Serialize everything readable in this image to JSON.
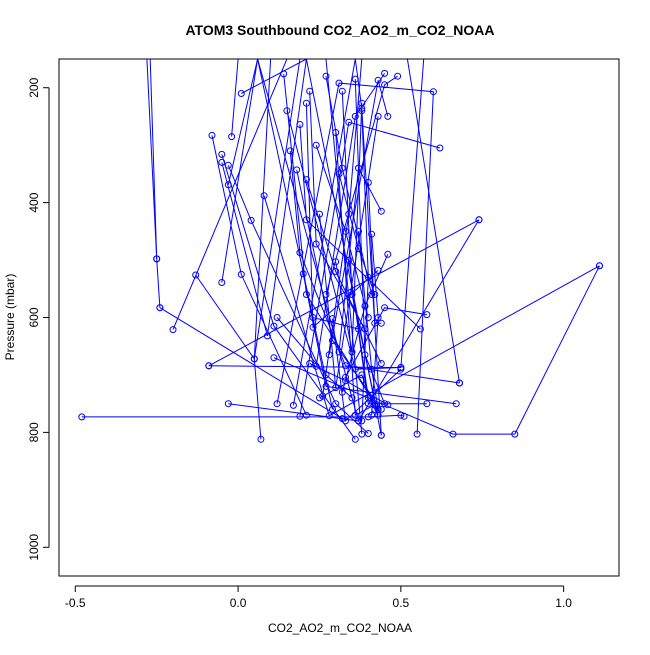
{
  "chart_data": {
    "type": "scatter",
    "title": "ATOM3 Southbound CO2_AO2_m_CO2_NOAA",
    "xlabel": "CO2_AO2_m_CO2_NOAA",
    "ylabel": "Pressure (mbar)",
    "xlim": [
      -0.55,
      1.17
    ],
    "ylim": [
      1050,
      150
    ],
    "y_reversed": true,
    "grid": false,
    "x_ticks": [
      -0.5,
      0.0,
      0.5,
      1.0
    ],
    "x_tick_labels": [
      "-0.5",
      "0.0",
      "0.5",
      "1.0"
    ],
    "y_ticks": [
      200,
      400,
      600,
      800,
      1000
    ],
    "y_tick_labels": [
      "200",
      "400",
      "600",
      "800",
      "1000"
    ],
    "series_color": "#0000ff",
    "series": [
      {
        "points": [
          [
            -0.28,
            150
          ],
          [
            -0.25,
            498
          ],
          [
            -0.24,
            583
          ]
        ]
      },
      {
        "points": [
          [
            -0.27,
            150
          ],
          [
            -0.25,
            498
          ]
        ]
      },
      {
        "points": [
          [
            -0.48,
            773
          ],
          [
            0.4,
            773
          ],
          [
            0.5,
            770
          ],
          [
            0.51,
            772
          ]
        ]
      },
      {
        "points": [
          [
            -0.24,
            583
          ],
          [
            0.32,
            776
          ]
        ]
      },
      {
        "points": [
          [
            -0.2,
            621
          ],
          [
            0.15,
            150
          ],
          [
            0.52,
            150
          ],
          [
            0.68,
            714
          ]
        ]
      },
      {
        "points": [
          [
            -0.13,
            526
          ],
          [
            0.05,
            672
          ],
          [
            0.1,
            150
          ]
        ]
      },
      {
        "points": [
          [
            -0.08,
            283
          ],
          [
            0.01,
            525
          ],
          [
            0.21,
            770
          ]
        ]
      },
      {
        "points": [
          [
            -0.05,
            316
          ],
          [
            0.11,
            615
          ],
          [
            0.36,
            812
          ]
        ]
      },
      {
        "points": [
          [
            -0.05,
            330
          ],
          [
            0.09,
            632
          ],
          [
            0.21,
            150
          ]
        ]
      },
      {
        "points": [
          [
            -0.03,
            335
          ],
          [
            0.04,
            431
          ],
          [
            0.3,
            750
          ],
          [
            0.4,
            802
          ]
        ]
      },
      {
        "points": [
          [
            -0.02,
            285
          ],
          [
            0.0,
            150
          ],
          [
            0.27,
            150
          ],
          [
            0.38,
            803
          ]
        ]
      },
      {
        "points": [
          [
            0.01,
            210
          ],
          [
            0.21,
            150
          ],
          [
            0.44,
            805
          ]
        ]
      },
      {
        "points": [
          [
            -0.03,
            369
          ],
          [
            0.06,
            150
          ],
          [
            0.37,
            780
          ]
        ]
      },
      {
        "points": [
          [
            -0.05,
            539
          ],
          [
            0.06,
            150
          ],
          [
            0.29,
            760
          ]
        ]
      },
      {
        "points": [
          [
            -0.09,
            684
          ],
          [
            0.5,
            687
          ],
          [
            0.57,
            150
          ]
        ]
      },
      {
        "points": [
          [
            -0.03,
            750
          ],
          [
            0.37,
            780
          ],
          [
            0.74,
            430
          ]
        ]
      },
      {
        "points": [
          [
            -0.09,
            684
          ],
          [
            0.74,
            430
          ]
        ]
      },
      {
        "points": [
          [
            0.07,
            812
          ],
          [
            0.05,
            672
          ],
          [
            0.19,
            150
          ]
        ]
      },
      {
        "points": [
          [
            0.08,
            388
          ],
          [
            0.28,
            771
          ],
          [
            1.11,
            510
          ]
        ]
      },
      {
        "points": [
          [
            0.11,
            670
          ],
          [
            0.66,
            803
          ],
          [
            0.85,
            803
          ],
          [
            1.11,
            510
          ]
        ]
      },
      {
        "points": [
          [
            0.12,
            750
          ],
          [
            0.31,
            192
          ],
          [
            0.6,
            207
          ],
          [
            0.55,
            803
          ]
        ]
      },
      {
        "points": [
          [
            0.15,
            240
          ],
          [
            0.36,
            690
          ],
          [
            0.5,
            687
          ]
        ]
      },
      {
        "points": [
          [
            0.17,
            753
          ],
          [
            0.36,
            150
          ],
          [
            0.38,
            236
          ],
          [
            0.44,
            805
          ]
        ]
      },
      {
        "points": [
          [
            0.16,
            310
          ],
          [
            0.19,
            487
          ],
          [
            0.33,
            684
          ],
          [
            0.68,
            714
          ]
        ]
      },
      {
        "points": [
          [
            0.14,
            176
          ],
          [
            0.21,
            560
          ],
          [
            0.43,
            760
          ]
        ]
      },
      {
        "points": [
          [
            0.18,
            343
          ],
          [
            0.29,
            640
          ],
          [
            0.44,
            760
          ]
        ]
      },
      {
        "points": [
          [
            0.19,
            264
          ],
          [
            0.21,
            430
          ],
          [
            0.56,
            620
          ]
        ]
      },
      {
        "points": [
          [
            0.19,
            772
          ],
          [
            0.34,
            260
          ],
          [
            0.62,
            305
          ]
        ]
      },
      {
        "points": [
          [
            0.2,
            524
          ],
          [
            0.27,
            720
          ],
          [
            0.67,
            750
          ]
        ]
      },
      {
        "points": [
          [
            0.21,
            227
          ],
          [
            0.23,
            617
          ],
          [
            0.43,
            518
          ]
        ]
      },
      {
        "points": [
          [
            0.22,
            206
          ],
          [
            0.24,
            472
          ],
          [
            0.39,
            620
          ]
        ]
      },
      {
        "points": [
          [
            0.25,
            420
          ],
          [
            0.3,
            722
          ],
          [
            0.43,
            250
          ]
        ]
      },
      {
        "points": [
          [
            0.24,
            685
          ],
          [
            0.36,
            250
          ],
          [
            0.45,
            175
          ]
        ]
      },
      {
        "points": [
          [
            0.27,
            560
          ],
          [
            0.45,
            195
          ],
          [
            0.49,
            180
          ]
        ]
      },
      {
        "points": [
          [
            0.28,
            665
          ],
          [
            0.43,
            187
          ],
          [
            0.46,
            250
          ]
        ]
      },
      {
        "points": [
          [
            0.26,
            737
          ],
          [
            0.34,
            420
          ],
          [
            0.38,
            150
          ]
        ]
      },
      {
        "points": [
          [
            0.3,
            503
          ],
          [
            0.35,
            660
          ],
          [
            0.38,
            227
          ]
        ]
      },
      {
        "points": [
          [
            0.31,
            660
          ],
          [
            0.37,
            340
          ],
          [
            0.44,
            415
          ]
        ]
      },
      {
        "points": [
          [
            0.32,
            730
          ],
          [
            0.39,
            580
          ],
          [
            0.46,
            490
          ]
        ]
      },
      {
        "points": [
          [
            0.33,
            704
          ],
          [
            0.45,
            583
          ],
          [
            0.58,
            595
          ]
        ]
      },
      {
        "points": [
          [
            0.34,
            500
          ],
          [
            0.4,
            750
          ],
          [
            0.58,
            750
          ]
        ]
      },
      {
        "points": [
          [
            0.29,
            602
          ],
          [
            0.33,
            780
          ],
          [
            0.5,
            690
          ]
        ]
      },
      {
        "points": [
          [
            0.3,
            278
          ],
          [
            0.36,
            770
          ],
          [
            0.42,
            752
          ]
        ]
      },
      {
        "points": [
          [
            0.32,
            206
          ],
          [
            0.35,
            560
          ],
          [
            0.43,
            770
          ]
        ]
      },
      {
        "points": [
          [
            0.36,
            185
          ],
          [
            0.39,
            665
          ],
          [
            0.45,
            750
          ]
        ]
      },
      {
        "points": [
          [
            0.37,
            450
          ],
          [
            0.41,
            690
          ],
          [
            0.43,
            760
          ]
        ]
      },
      {
        "points": [
          [
            0.4,
            365
          ],
          [
            0.42,
            610
          ],
          [
            0.44,
            610
          ]
        ]
      },
      {
        "points": [
          [
            0.41,
            455
          ],
          [
            0.43,
            600
          ],
          [
            0.41,
            770
          ]
        ]
      },
      {
        "points": [
          [
            0.38,
            240
          ],
          [
            0.4,
            530
          ],
          [
            0.38,
            780
          ]
        ]
      },
      {
        "points": [
          [
            0.22,
            680
          ],
          [
            0.33,
            710
          ],
          [
            0.46,
            752
          ]
        ]
      },
      {
        "points": [
          [
            0.25,
            740
          ],
          [
            0.38,
            700
          ],
          [
            0.42,
            760
          ]
        ]
      },
      {
        "points": [
          [
            0.23,
            600
          ],
          [
            0.37,
            620
          ],
          [
            0.4,
            740
          ]
        ]
      },
      {
        "points": [
          [
            0.12,
            600
          ],
          [
            0.27,
            700
          ],
          [
            0.35,
            740
          ]
        ]
      },
      {
        "points": [
          [
            0.31,
            350
          ],
          [
            0.37,
            480
          ],
          [
            0.42,
            560
          ]
        ]
      },
      {
        "points": [
          [
            0.21,
            360
          ],
          [
            0.3,
            520
          ],
          [
            0.44,
            680
          ]
        ]
      },
      {
        "points": [
          [
            0.24,
            300
          ],
          [
            0.33,
            450
          ],
          [
            0.4,
            600
          ]
        ]
      },
      {
        "points": [
          [
            0.27,
            180
          ],
          [
            0.32,
            340
          ],
          [
            0.41,
            560
          ]
        ]
      }
    ]
  }
}
